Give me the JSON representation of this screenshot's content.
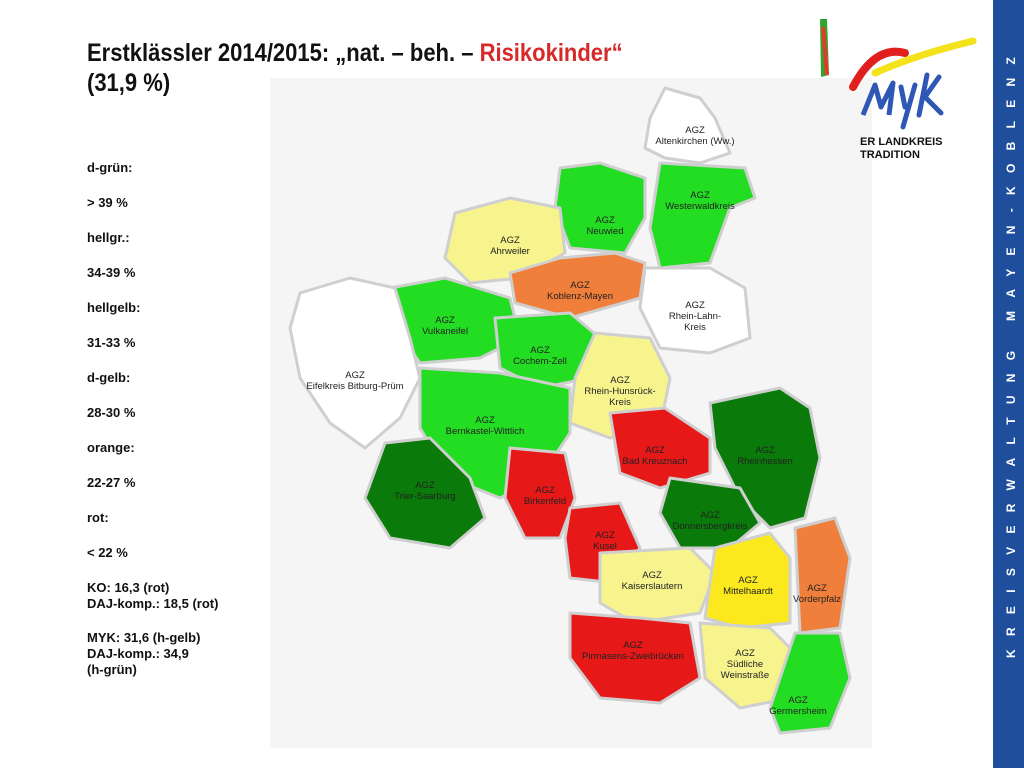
{
  "title": {
    "line1_prefix": "Erstklässler 2014/2015: „nat. – beh. – ",
    "line1_accent": "Risikokinder“",
    "line2": "(31,9 %)"
  },
  "legend": [
    "d-grün:",
    "> 39 %",
    "hellgr.:",
    "34-39 %",
    "hellgelb:",
    "31-33 %",
    "d-gelb:",
    "28-30 %",
    "orange:",
    "22-27 %",
    "rot:",
    "< 22 %"
  ],
  "notes": [
    {
      "line1": "KO: 16,3 (rot)",
      "line2": "DAJ-komp.: 18,5 (rot)",
      "line3": ""
    },
    {
      "line1": "MYK: 31,6 (h-gelb)",
      "line2": "DAJ-komp.: 34,9",
      "line3": "(h-grün)"
    }
  ],
  "colors": {
    "dark_green": "#0a7a0a",
    "light_green": "#22dd22",
    "light_yellow": "#f7f48e",
    "dark_yellow": "#fbe91d",
    "orange": "#f07f3b",
    "red": "#e71818",
    "uncolored": "#ffffff",
    "sidebar": "#1f4e9c"
  },
  "regions": [
    {
      "id": "altenkirchen",
      "agz": "AGZ",
      "name": "Altenkirchen (Ww.)",
      "name2": "",
      "color": "uncolored"
    },
    {
      "id": "westerwaldkreis",
      "agz": "AGZ",
      "name": "Westerwaldkreis",
      "name2": "",
      "color": "light_green"
    },
    {
      "id": "neuwied",
      "agz": "AGZ",
      "name": "Neuwied",
      "name2": "",
      "color": "light_green"
    },
    {
      "id": "ahrweiler",
      "agz": "AGZ",
      "name": "Ahrweiler",
      "name2": "",
      "color": "light_yellow"
    },
    {
      "id": "koblenz-mayen",
      "agz": "AGZ",
      "name": "Koblenz-Mayen",
      "name2": "",
      "color": "orange"
    },
    {
      "id": "rhein-lahn",
      "agz": "AGZ",
      "name": "Rhein-Lahn-",
      "name2": "Kreis",
      "color": "uncolored"
    },
    {
      "id": "vulkaneifel",
      "agz": "AGZ",
      "name": "Vulkaneifel",
      "name2": "",
      "color": "light_green"
    },
    {
      "id": "cochem-zell",
      "agz": "AGZ",
      "name": "Cochem-Zell",
      "name2": "",
      "color": "light_green"
    },
    {
      "id": "eifelkreis",
      "agz": "AGZ",
      "name": "Eifelkreis Bitburg-Prüm",
      "name2": "",
      "color": "uncolored"
    },
    {
      "id": "rhein-hunsrueck",
      "agz": "AGZ",
      "name": "Rhein-Hunsrück-",
      "name2": "Kreis",
      "color": "light_yellow"
    },
    {
      "id": "bernkastel-wittlich",
      "agz": "AGZ",
      "name": "Bernkastel-Wittlich",
      "name2": "",
      "color": "light_green"
    },
    {
      "id": "bad-kreuznach",
      "agz": "AGZ",
      "name": "Bad Kreuznach",
      "name2": "",
      "color": "red"
    },
    {
      "id": "rheinhessen",
      "agz": "AGZ",
      "name": "Rheinhessen",
      "name2": "",
      "color": "dark_green"
    },
    {
      "id": "trier-saarburg",
      "agz": "AGZ",
      "name": "Trier-Saarburg",
      "name2": "",
      "color": "dark_green"
    },
    {
      "id": "birkenfeld",
      "agz": "AGZ",
      "name": "Birkenfeld",
      "name2": "",
      "color": "red"
    },
    {
      "id": "donnersbergkreis",
      "agz": "AGZ",
      "name": "Donnersbergkreis",
      "name2": "",
      "color": "dark_green"
    },
    {
      "id": "kusel",
      "agz": "AGZ",
      "name": "Kusel",
      "name2": "",
      "color": "red"
    },
    {
      "id": "kaiserslautern",
      "agz": "AGZ",
      "name": "Kaiserslautern",
      "name2": "",
      "color": "light_yellow"
    },
    {
      "id": "mittelhaardt",
      "agz": "AGZ",
      "name": "Mittelhaardt",
      "name2": "",
      "color": "dark_yellow"
    },
    {
      "id": "vorderpfalz",
      "agz": "AGZ",
      "name": "Vorderpfalz",
      "name2": "",
      "color": "orange"
    },
    {
      "id": "pirmasens-zweibruecken",
      "agz": "AGZ",
      "name": "Pirmasens-Zweibrücken",
      "name2": "",
      "color": "red"
    },
    {
      "id": "suedliche-weinstrasse",
      "agz": "AGZ",
      "name": "Südliche",
      "name2": "Weinstraße",
      "color": "light_yellow"
    },
    {
      "id": "germersheim",
      "agz": "AGZ",
      "name": "Germersheim",
      "name2": "",
      "color": "light_green"
    }
  ],
  "logo": {
    "mark": "myk",
    "text_line1": "ER LANDKREIS",
    "text_line2": "TRADITION"
  },
  "sidebar_text": "KREISVERWALTUNG MAYEN-KOBLENZ"
}
